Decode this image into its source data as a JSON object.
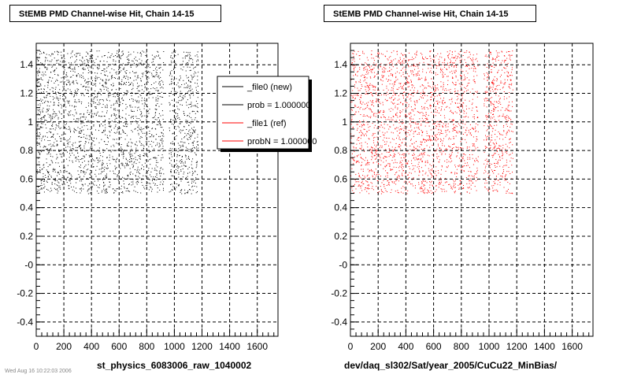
{
  "page": {
    "footer_text": "Wed Aug 16 10:22:03 2006"
  },
  "chart_data": [
    {
      "type": "scatter",
      "title": "StEMB PMD Channel-wise Hit, Chain 14-15",
      "xlabel": "st_physics_6083006_raw_1040002",
      "ylabel": "",
      "xlim": [
        0,
        1750
      ],
      "ylim": [
        -0.5,
        1.55
      ],
      "x_ticks": [
        0,
        200,
        400,
        600,
        800,
        1000,
        1200,
        1400,
        1600
      ],
      "x_tick_labels": [
        "0",
        "200",
        "400",
        "600",
        "800",
        "1000",
        "1200",
        "1400",
        "1600"
      ],
      "y_ticks": [
        -0.4,
        -0.2,
        0,
        0.2,
        0.4,
        0.6,
        0.8,
        1.0,
        1.2,
        1.4
      ],
      "y_tick_labels": [
        "-0.4",
        "-0.2",
        "-0",
        "0.2",
        "0.4",
        "0.6",
        "0.8",
        "1",
        "1.2",
        "1.4"
      ],
      "grid": true,
      "marker_color": "#000000",
      "hit_regions": [
        {
          "x": [
            0,
            920
          ],
          "y": [
            0.5,
            1.5
          ]
        },
        {
          "x": [
            960,
            1170
          ],
          "y": [
            0.5,
            1.5
          ]
        }
      ],
      "legend": {
        "placement": "top-right",
        "entries": [
          {
            "label": "_file0 (new)",
            "color": "#000000"
          },
          {
            "label": "prob = 1.000000",
            "color": "#000000"
          },
          {
            "label": "_file1 (ref)",
            "color": "#ff0000"
          },
          {
            "label": "probN = 1.000000",
            "color": "#ff0000"
          }
        ]
      }
    },
    {
      "type": "scatter",
      "title": "StEMB PMD Channel-wise Hit, Chain 14-15",
      "xlabel": "dev/daq_sl302/Sat/year_2005/CuCu22_MinBias/",
      "ylabel": "",
      "xlim": [
        0,
        1750
      ],
      "ylim": [
        -0.5,
        1.55
      ],
      "x_ticks": [
        0,
        200,
        400,
        600,
        800,
        1000,
        1200,
        1400,
        1600
      ],
      "x_tick_labels": [
        "0",
        "200",
        "400",
        "600",
        "800",
        "1000",
        "1200",
        "1400",
        "1600"
      ],
      "y_ticks": [
        -0.4,
        -0.2,
        0,
        0.2,
        0.4,
        0.6,
        0.8,
        1.0,
        1.2,
        1.4
      ],
      "y_tick_labels": [
        "-0.4",
        "-0.2",
        "-0",
        "0.2",
        "0.4",
        "0.6",
        "0.8",
        "1",
        "1.2",
        "1.4"
      ],
      "grid": true,
      "marker_color": "#ff0000",
      "hit_regions": [
        {
          "x": [
            0,
            920
          ],
          "y": [
            0.5,
            1.5
          ]
        },
        {
          "x": [
            960,
            1170
          ],
          "y": [
            0.5,
            1.5
          ]
        }
      ]
    }
  ]
}
